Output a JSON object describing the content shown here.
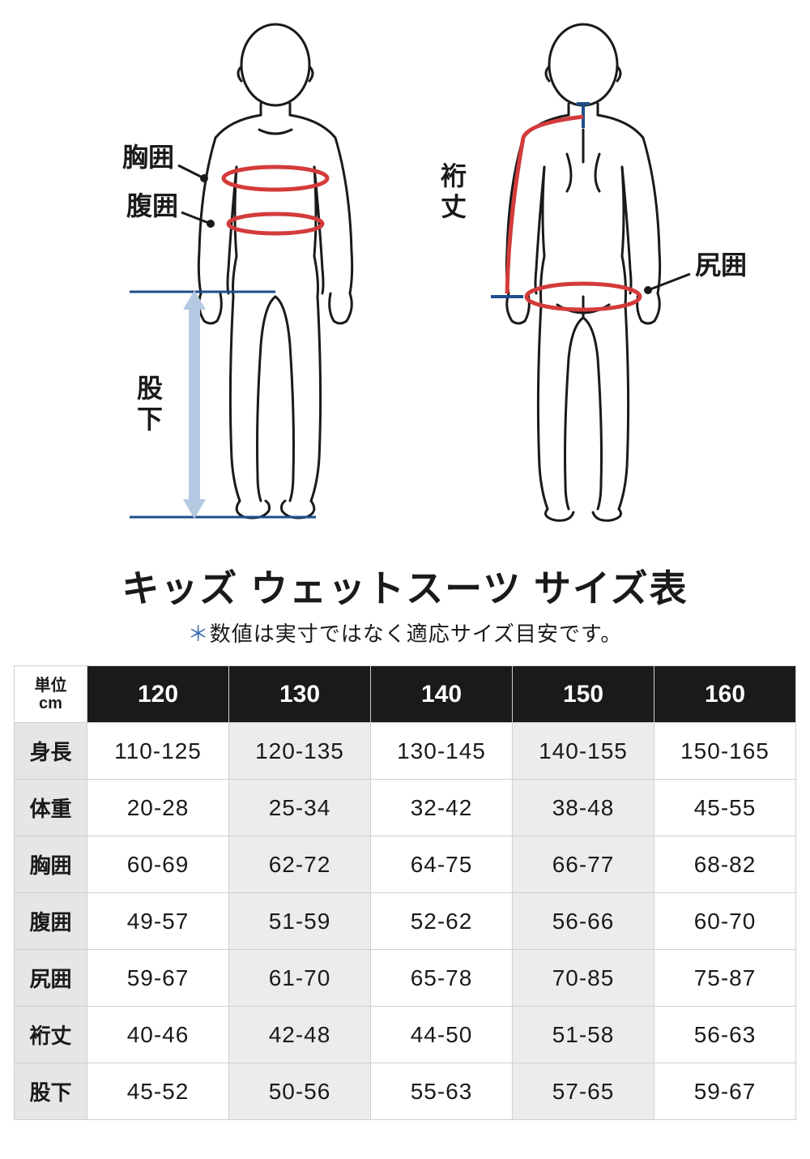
{
  "diagram": {
    "labels": {
      "chest": "胸囲",
      "waist": "腹囲",
      "inseam_1": "股",
      "inseam_2": "下",
      "sleeve_1": "裄",
      "sleeve_2": "丈",
      "hip": "尻囲"
    },
    "colors": {
      "outline": "#1a1a1a",
      "measure_line": "#d43b3b",
      "guide_blue": "#1e4e8c",
      "arrow_fill": "#b6c9e2"
    }
  },
  "title": "キッズ ウェットスーツ サイズ表",
  "subtitle_prefix": "＊",
  "subtitle": "数値は実寸ではなく適応サイズ目安です。",
  "table": {
    "unit_top": "単位",
    "unit_bottom": "cm",
    "headers": [
      "120",
      "130",
      "140",
      "150",
      "160"
    ],
    "rows": [
      {
        "label": "身長",
        "cells": [
          "110-125",
          "120-135",
          "130-145",
          "140-155",
          "150-165"
        ]
      },
      {
        "label": "体重",
        "cells": [
          "20-28",
          "25-34",
          "32-42",
          "38-48",
          "45-55"
        ]
      },
      {
        "label": "胸囲",
        "cells": [
          "60-69",
          "62-72",
          "64-75",
          "66-77",
          "68-82"
        ]
      },
      {
        "label": "腹囲",
        "cells": [
          "49-57",
          "51-59",
          "52-62",
          "56-66",
          "60-70"
        ]
      },
      {
        "label": "尻囲",
        "cells": [
          "59-67",
          "61-70",
          "65-78",
          "70-85",
          "75-87"
        ]
      },
      {
        "label": "裄丈",
        "cells": [
          "40-46",
          "42-48",
          "44-50",
          "51-58",
          "56-63"
        ]
      },
      {
        "label": "股下",
        "cells": [
          "45-52",
          "50-56",
          "55-63",
          "57-65",
          "59-67"
        ]
      }
    ],
    "shaded_cols": [
      1,
      3
    ],
    "colors": {
      "header_bg": "#1a1a1a",
      "header_fg": "#ffffff",
      "rowlabel_bg": "#e6e6e6",
      "shaded_bg": "#ececec",
      "border": "#cfcfcf"
    }
  }
}
